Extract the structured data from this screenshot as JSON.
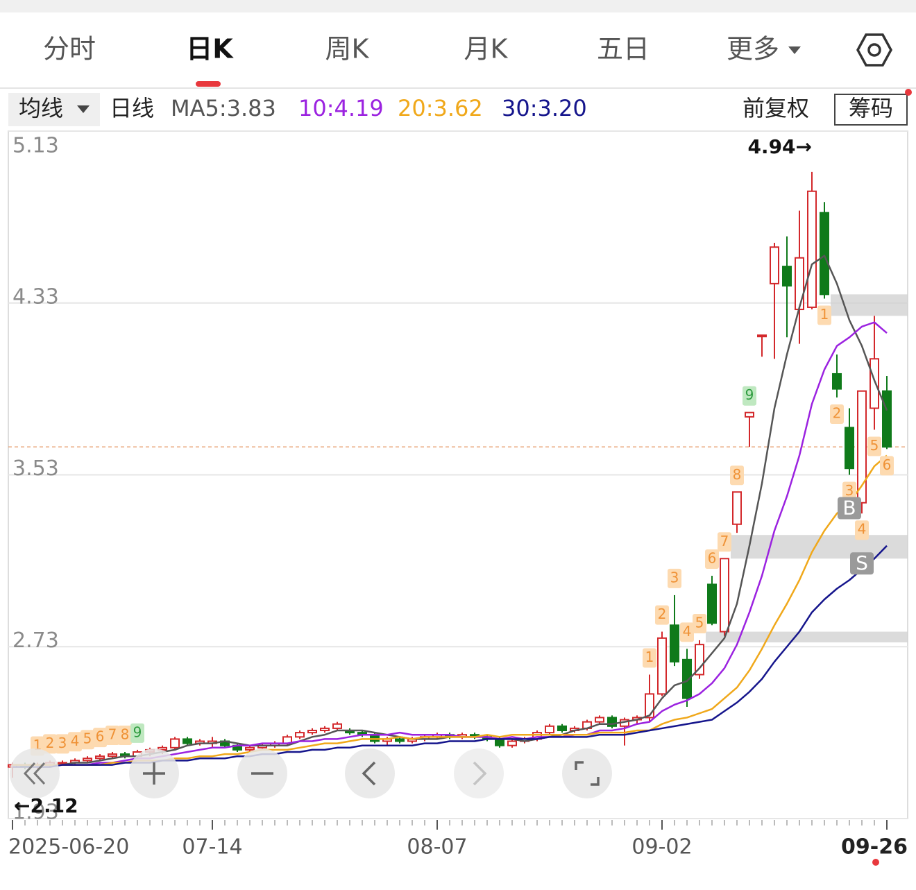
{
  "tabs": [
    "分时",
    "日K",
    "周K",
    "月K",
    "五日",
    "更多"
  ],
  "active_tab": 1,
  "header": {
    "ma_menu": "均线",
    "period": "日线",
    "adjust": "前复权",
    "chips": "筹码"
  },
  "chart_data": {
    "type": "candlestick",
    "categories": [
      "2025-06-20",
      null,
      null,
      null,
      null,
      null,
      null,
      null,
      null,
      null,
      null,
      null,
      null,
      null,
      null,
      null,
      "07-14",
      null,
      null,
      null,
      null,
      null,
      null,
      null,
      null,
      null,
      null,
      null,
      null,
      null,
      null,
      null,
      null,
      null,
      "08-07",
      null,
      null,
      null,
      null,
      null,
      null,
      null,
      null,
      null,
      null,
      null,
      null,
      null,
      null,
      null,
      null,
      null,
      "09-02",
      null,
      null,
      null,
      null,
      null,
      null,
      null,
      null,
      null,
      null,
      null,
      null,
      null,
      null,
      null,
      null,
      null,
      "09-26"
    ],
    "open": [
      2.17,
      2.18,
      2.17,
      2.18,
      2.19,
      2.19,
      2.2,
      2.21,
      2.22,
      2.23,
      2.22,
      2.24,
      2.25,
      2.26,
      2.3,
      2.28,
      2.28,
      2.29,
      2.27,
      2.25,
      2.26,
      2.27,
      2.28,
      2.31,
      2.33,
      2.34,
      2.35,
      2.34,
      2.33,
      2.32,
      2.29,
      2.3,
      2.29,
      2.3,
      2.31,
      2.32,
      2.31,
      2.32,
      2.31,
      2.3,
      2.27,
      2.29,
      2.3,
      2.33,
      2.36,
      2.34,
      2.35,
      2.38,
      2.4,
      2.36,
      2.39,
      2.4,
      2.51,
      2.83,
      2.67,
      2.6,
      3.02,
      2.8,
      3.3,
      3.8,
      4.18,
      4.42,
      4.5,
      4.3,
      4.31,
      4.75,
      4.0,
      3.75,
      3.4,
      3.84,
      3.92
    ],
    "high": [
      2.19,
      2.19,
      2.19,
      2.2,
      2.2,
      2.21,
      2.22,
      2.23,
      2.24,
      2.24,
      2.25,
      2.26,
      2.27,
      2.31,
      2.31,
      2.3,
      2.31,
      2.3,
      2.28,
      2.27,
      2.28,
      2.29,
      2.32,
      2.34,
      2.35,
      2.36,
      2.38,
      2.35,
      2.34,
      2.33,
      2.31,
      2.31,
      2.31,
      2.32,
      2.33,
      2.33,
      2.33,
      2.33,
      2.32,
      2.31,
      2.3,
      2.31,
      2.34,
      2.37,
      2.37,
      2.36,
      2.39,
      2.41,
      2.41,
      2.4,
      2.41,
      2.6,
      2.8,
      2.97,
      2.72,
      2.76,
      3.06,
      3.14,
      3.45,
      3.82,
      4.18,
      4.61,
      4.64,
      4.76,
      4.94,
      4.8,
      4.09,
      3.84,
      3.92,
      4.27,
      3.99
    ],
    "low": [
      2.12,
      2.16,
      2.16,
      2.17,
      2.18,
      2.18,
      2.19,
      2.2,
      2.21,
      2.21,
      2.21,
      2.22,
      2.23,
      2.25,
      2.27,
      2.27,
      2.26,
      2.26,
      2.24,
      2.24,
      2.25,
      2.26,
      2.27,
      2.3,
      2.32,
      2.33,
      2.34,
      2.32,
      2.31,
      2.28,
      2.27,
      2.28,
      2.28,
      2.29,
      2.3,
      2.3,
      2.3,
      2.3,
      2.29,
      2.26,
      2.26,
      2.28,
      2.29,
      2.32,
      2.33,
      2.33,
      2.34,
      2.37,
      2.35,
      2.27,
      2.37,
      2.38,
      2.5,
      2.64,
      2.45,
      2.58,
      2.83,
      2.78,
      3.26,
      3.66,
      4.08,
      4.07,
      4.17,
      4.14,
      4.3,
      4.35,
      3.89,
      3.53,
      3.35,
      3.74,
      3.65
    ],
    "close": [
      2.18,
      2.17,
      2.18,
      2.19,
      2.19,
      2.2,
      2.21,
      2.22,
      2.23,
      2.22,
      2.24,
      2.25,
      2.26,
      2.3,
      2.28,
      2.29,
      2.29,
      2.27,
      2.25,
      2.26,
      2.27,
      2.28,
      2.31,
      2.33,
      2.34,
      2.35,
      2.37,
      2.33,
      2.32,
      2.29,
      2.3,
      2.29,
      2.3,
      2.31,
      2.32,
      2.31,
      2.32,
      2.31,
      2.3,
      2.27,
      2.29,
      2.3,
      2.33,
      2.36,
      2.34,
      2.35,
      2.38,
      2.4,
      2.36,
      2.39,
      2.4,
      2.51,
      2.77,
      2.66,
      2.49,
      2.74,
      2.84,
      3.14,
      3.45,
      3.82,
      4.18,
      4.59,
      4.41,
      4.54,
      4.85,
      4.37,
      3.93,
      3.56,
      3.92,
      4.07,
      3.66
    ],
    "up_color": "#d3282b",
    "down_color": "#0f7a1a",
    "series": [
      {
        "name": "MA5:3.83",
        "color": "#555555",
        "values": [
          2.18,
          2.18,
          2.18,
          2.18,
          2.18,
          2.19,
          2.19,
          2.2,
          2.21,
          2.22,
          2.22,
          2.23,
          2.24,
          2.25,
          2.27,
          2.28,
          2.28,
          2.29,
          2.28,
          2.27,
          2.27,
          2.27,
          2.27,
          2.29,
          2.31,
          2.32,
          2.34,
          2.34,
          2.34,
          2.33,
          2.32,
          2.31,
          2.3,
          2.3,
          2.3,
          2.31,
          2.31,
          2.31,
          2.31,
          2.3,
          2.3,
          2.29,
          2.3,
          2.31,
          2.32,
          2.34,
          2.35,
          2.37,
          2.37,
          2.38,
          2.39,
          2.41,
          2.49,
          2.55,
          2.57,
          2.63,
          2.7,
          2.77,
          2.93,
          3.2,
          3.49,
          3.84,
          4.09,
          4.31,
          4.51,
          4.55,
          4.42,
          4.25,
          4.13,
          3.97,
          3.83
        ]
      },
      {
        "name": "10:4.19",
        "color": "#9b22e0",
        "values": [
          2.18,
          2.18,
          2.18,
          2.18,
          2.18,
          2.18,
          2.18,
          2.19,
          2.19,
          2.2,
          2.21,
          2.21,
          2.22,
          2.23,
          2.24,
          2.25,
          2.26,
          2.26,
          2.27,
          2.27,
          2.28,
          2.28,
          2.28,
          2.29,
          2.29,
          2.3,
          2.3,
          2.31,
          2.32,
          2.32,
          2.32,
          2.33,
          2.32,
          2.32,
          2.32,
          2.32,
          2.31,
          2.31,
          2.31,
          2.3,
          2.31,
          2.3,
          2.31,
          2.31,
          2.31,
          2.32,
          2.32,
          2.34,
          2.34,
          2.35,
          2.37,
          2.38,
          2.43,
          2.46,
          2.48,
          2.51,
          2.56,
          2.63,
          2.74,
          2.89,
          3.06,
          3.27,
          3.43,
          3.62,
          3.86,
          4.02,
          4.13,
          4.17,
          4.22,
          4.24,
          4.19
        ]
      },
      {
        "name": "20:3.62",
        "color": "#f0a81a",
        "values": [
          2.18,
          2.18,
          2.18,
          2.18,
          2.18,
          2.18,
          2.18,
          2.18,
          2.19,
          2.19,
          2.2,
          2.2,
          2.2,
          2.21,
          2.21,
          2.22,
          2.22,
          2.23,
          2.23,
          2.24,
          2.25,
          2.25,
          2.25,
          2.26,
          2.27,
          2.28,
          2.28,
          2.29,
          2.3,
          2.3,
          2.3,
          2.31,
          2.3,
          2.31,
          2.31,
          2.31,
          2.31,
          2.31,
          2.32,
          2.31,
          2.32,
          2.32,
          2.32,
          2.32,
          2.32,
          2.32,
          2.32,
          2.33,
          2.33,
          2.33,
          2.34,
          2.34,
          2.37,
          2.39,
          2.4,
          2.42,
          2.44,
          2.49,
          2.54,
          2.62,
          2.72,
          2.83,
          2.93,
          3.04,
          3.17,
          3.27,
          3.35,
          3.4,
          3.48,
          3.57,
          3.62
        ]
      },
      {
        "name": "30:3.20",
        "color": "#15158c",
        "values": [
          2.17,
          2.17,
          2.17,
          2.17,
          2.18,
          2.18,
          2.18,
          2.18,
          2.18,
          2.19,
          2.19,
          2.19,
          2.2,
          2.2,
          2.2,
          2.21,
          2.21,
          2.21,
          2.22,
          2.22,
          2.23,
          2.23,
          2.24,
          2.24,
          2.25,
          2.25,
          2.26,
          2.26,
          2.27,
          2.27,
          2.27,
          2.27,
          2.27,
          2.28,
          2.28,
          2.29,
          2.29,
          2.29,
          2.3,
          2.3,
          2.3,
          2.3,
          2.3,
          2.31,
          2.31,
          2.31,
          2.31,
          2.32,
          2.32,
          2.32,
          2.33,
          2.34,
          2.35,
          2.36,
          2.37,
          2.38,
          2.39,
          2.43,
          2.47,
          2.52,
          2.58,
          2.66,
          2.73,
          2.8,
          2.89,
          2.95,
          3.0,
          3.04,
          3.09,
          3.14,
          3.2
        ]
      }
    ],
    "ylim": [
      1.93,
      5.13
    ],
    "yticks": [
      1.93,
      2.73,
      3.53,
      4.33,
      5.13
    ],
    "grid": true,
    "max_label": "4.94→",
    "min_label": "←2.12",
    "price_line_color": "#e8a47a",
    "zones": [
      {
        "low": 4.27,
        "high": 4.37,
        "start": 66
      },
      {
        "low": 3.14,
        "high": 3.25,
        "start": 58
      },
      {
        "low": 2.75,
        "high": 2.8,
        "start": 56
      }
    ],
    "td_up": [
      {
        "start": 2,
        "labels": [
          "1",
          "2",
          "3",
          "4",
          "5",
          "6",
          "7",
          "8",
          "9"
        ]
      },
      {
        "start": 51,
        "labels": [
          "1",
          "2",
          "3",
          "4",
          "5",
          "6",
          "7",
          "8",
          "9"
        ]
      }
    ],
    "td_down": [
      {
        "start": 65,
        "labels": [
          "1",
          "2",
          "3",
          "4",
          "5",
          "6"
        ]
      }
    ],
    "td_colors": {
      "fill": "#fddab0",
      "text": "#ef9236",
      "final_fill": "#bfe8c0",
      "final_text": "#2e9b3f"
    },
    "signals": [
      {
        "index": 67,
        "label": "B"
      },
      {
        "index": 68,
        "label": "S"
      }
    ]
  }
}
